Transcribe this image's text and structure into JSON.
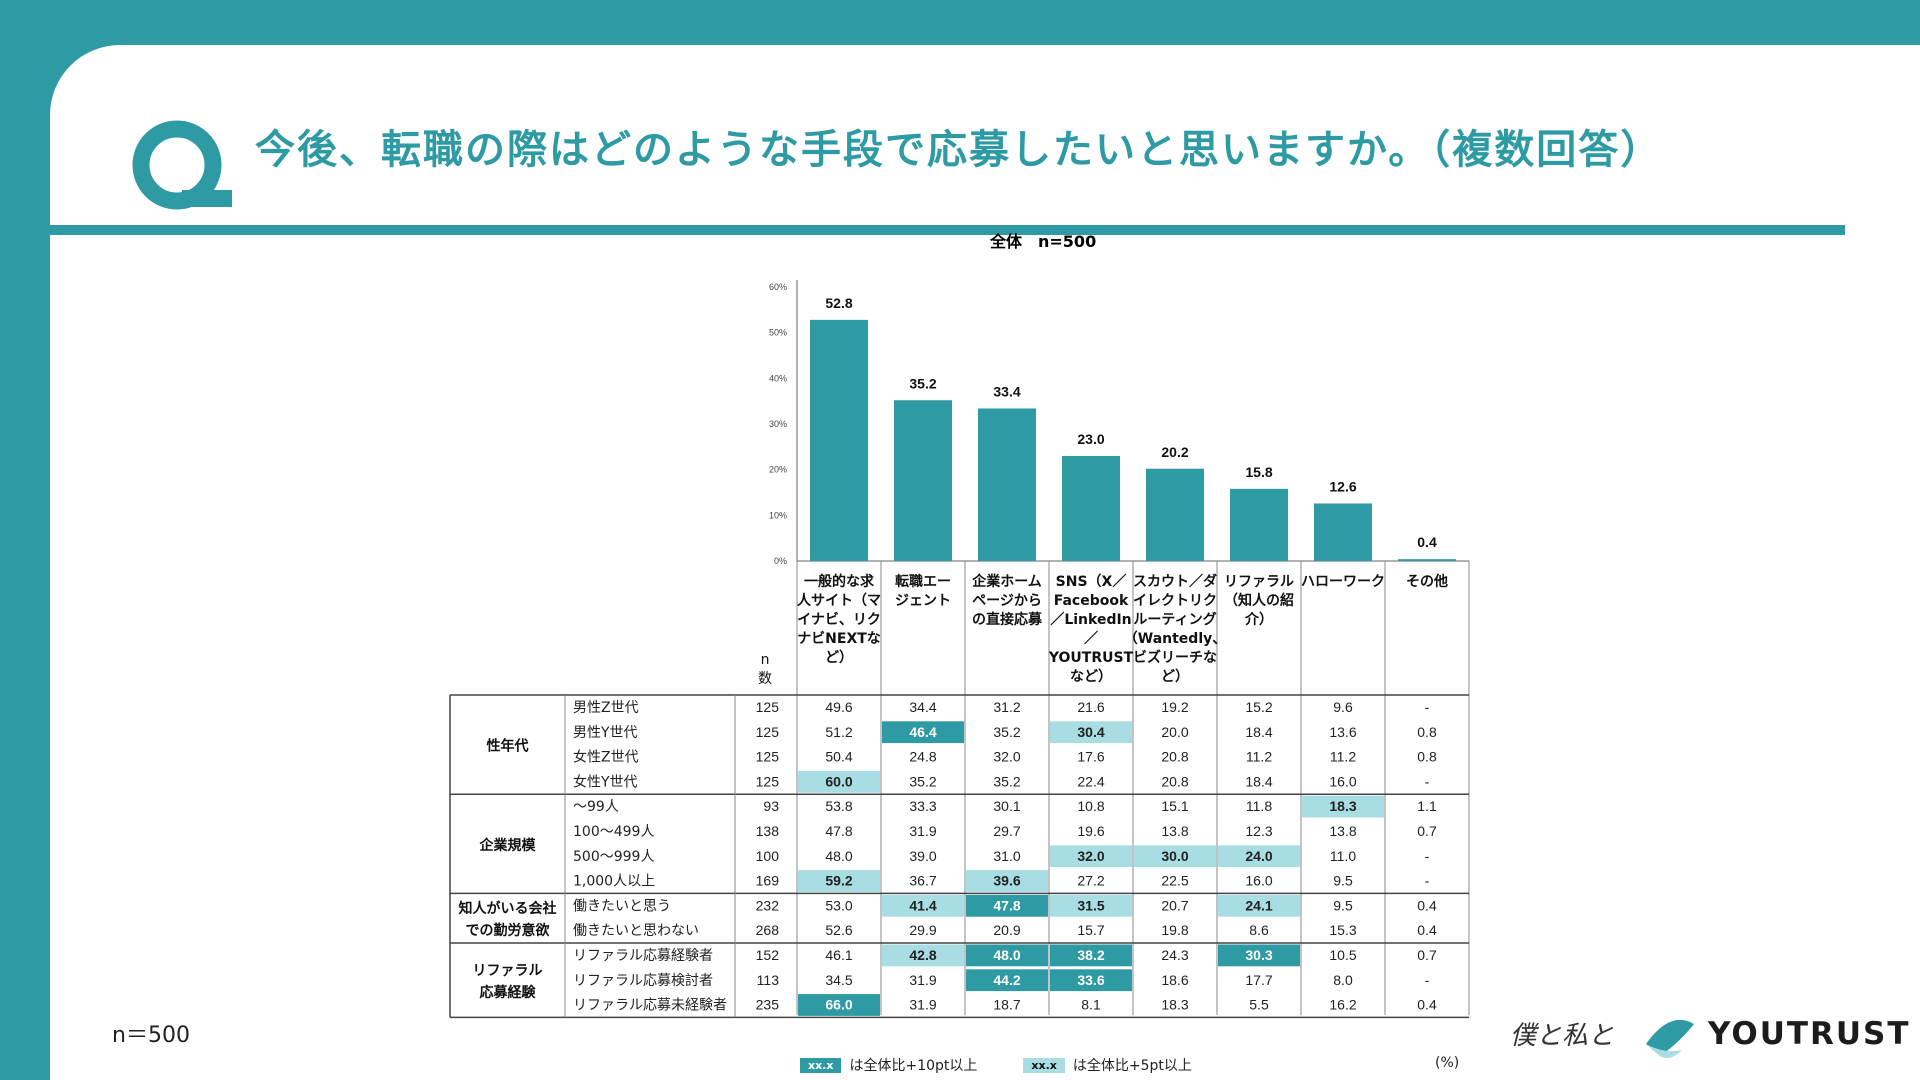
{
  "header": {
    "title": "今後、転職の際はどのような手段で応募したいと思いますか。（複数回答）",
    "q_letter": "Q"
  },
  "colors": {
    "accent": "#2e9aa3",
    "highlight_strong": "#2e9aa3",
    "highlight_light": "#a8dde3"
  },
  "chart_data": {
    "type": "bar",
    "title": "全体　n=500",
    "ylim": [
      0,
      60
    ],
    "yticks": [
      "0%",
      "10%",
      "20%",
      "30%",
      "40%",
      "50%",
      "60%"
    ],
    "categories": [
      "一般的な求人サイト（マイナビ、リクナビNEXTなど）",
      "転職エージェント",
      "企業ホームページからの直接応募",
      "SNS（X／Facebook／LinkedIn／YOUTRUSTなど）",
      "スカウト／ダイレクトリクルーティング（Wantedly、ビズリーチなど）",
      "リファラル（知人の紹介）",
      "ハローワーク",
      "その他"
    ],
    "category_lines": [
      [
        "一般的な求",
        "人サイト（マ",
        "イナビ、リク",
        "ナビNEXTな",
        "ど）"
      ],
      [
        "転職エー",
        "ジェント"
      ],
      [
        "企業ホーム",
        "ページから",
        "の直接応募"
      ],
      [
        "SNS（X／",
        "Facebook",
        "／LinkedIn",
        "／",
        "YOUTRUST",
        "など）"
      ],
      [
        "スカウト／ダ",
        "イレクトリク",
        "ルーティング",
        "（Wantedly、",
        "ビズリーチな",
        "ど）"
      ],
      [
        "リファラル",
        "（知人の紹",
        "介）"
      ],
      [
        "ハローワーク"
      ],
      [
        "その他"
      ]
    ],
    "values": [
      52.8,
      35.2,
      33.4,
      23.0,
      20.2,
      15.8,
      12.6,
      0.4
    ],
    "value_labels": [
      "52.8",
      "35.2",
      "33.4",
      "23.0",
      "20.2",
      "15.8",
      "12.6",
      "0.4"
    ],
    "n_header": [
      "n",
      "数"
    ],
    "table": {
      "groups": [
        {
          "label": [
            "性年代"
          ],
          "rows": [
            {
              "label": "男性Z世代",
              "n": "125",
              "values": [
                "49.6",
                "34.4",
                "31.2",
                "21.6",
                "19.2",
                "15.2",
                "9.6",
                "-"
              ],
              "hl": [
                0,
                0,
                0,
                0,
                0,
                0,
                0,
                0
              ]
            },
            {
              "label": "男性Y世代",
              "n": "125",
              "values": [
                "51.2",
                "46.4",
                "35.2",
                "30.4",
                "20.0",
                "18.4",
                "13.6",
                "0.8"
              ],
              "hl": [
                0,
                2,
                0,
                1,
                0,
                0,
                0,
                0
              ]
            },
            {
              "label": "女性Z世代",
              "n": "125",
              "values": [
                "50.4",
                "24.8",
                "32.0",
                "17.6",
                "20.8",
                "11.2",
                "11.2",
                "0.8"
              ],
              "hl": [
                0,
                0,
                0,
                0,
                0,
                0,
                0,
                0
              ]
            },
            {
              "label": "女性Y世代",
              "n": "125",
              "values": [
                "60.0",
                "35.2",
                "35.2",
                "22.4",
                "20.8",
                "18.4",
                "16.0",
                "-"
              ],
              "hl": [
                1,
                0,
                0,
                0,
                0,
                0,
                0,
                0
              ]
            }
          ]
        },
        {
          "label": [
            "企業規模"
          ],
          "rows": [
            {
              "label": "～99人",
              "n": "93",
              "values": [
                "53.8",
                "33.3",
                "30.1",
                "10.8",
                "15.1",
                "11.8",
                "18.3",
                "1.1"
              ],
              "hl": [
                0,
                0,
                0,
                0,
                0,
                0,
                1,
                0
              ]
            },
            {
              "label": "100～499人",
              "n": "138",
              "values": [
                "47.8",
                "31.9",
                "29.7",
                "19.6",
                "13.8",
                "12.3",
                "13.8",
                "0.7"
              ],
              "hl": [
                0,
                0,
                0,
                0,
                0,
                0,
                0,
                0
              ]
            },
            {
              "label": "500～999人",
              "n": "100",
              "values": [
                "48.0",
                "39.0",
                "31.0",
                "32.0",
                "30.0",
                "24.0",
                "11.0",
                "-"
              ],
              "hl": [
                0,
                0,
                0,
                1,
                1,
                1,
                0,
                0
              ]
            },
            {
              "label": "1,000人以上",
              "n": "169",
              "values": [
                "59.2",
                "36.7",
                "39.6",
                "27.2",
                "22.5",
                "16.0",
                "9.5",
                "-"
              ],
              "hl": [
                1,
                0,
                1,
                0,
                0,
                0,
                0,
                0
              ]
            }
          ]
        },
        {
          "label": [
            "知人がいる会社",
            "での勤労意欲"
          ],
          "rows": [
            {
              "label": "働きたいと思う",
              "n": "232",
              "values": [
                "53.0",
                "41.4",
                "47.8",
                "31.5",
                "20.7",
                "24.1",
                "9.5",
                "0.4"
              ],
              "hl": [
                0,
                1,
                2,
                1,
                0,
                1,
                0,
                0
              ]
            },
            {
              "label": "働きたいと思わない",
              "n": "268",
              "values": [
                "52.6",
                "29.9",
                "20.9",
                "15.7",
                "19.8",
                "8.6",
                "15.3",
                "0.4"
              ],
              "hl": [
                0,
                0,
                0,
                0,
                0,
                0,
                0,
                0
              ]
            }
          ]
        },
        {
          "label": [
            "リファラル",
            "応募経験"
          ],
          "rows": [
            {
              "label": "リファラル応募経験者",
              "n": "152",
              "values": [
                "46.1",
                "42.8",
                "48.0",
                "38.2",
                "24.3",
                "30.3",
                "10.5",
                "0.7"
              ],
              "hl": [
                0,
                1,
                2,
                2,
                0,
                2,
                0,
                0
              ]
            },
            {
              "label": "リファラル応募検討者",
              "n": "113",
              "values": [
                "34.5",
                "31.9",
                "44.2",
                "33.6",
                "18.6",
                "17.7",
                "8.0",
                "-"
              ],
              "hl": [
                0,
                0,
                2,
                2,
                0,
                0,
                0,
                0
              ]
            },
            {
              "label": "リファラル応募未経験者",
              "n": "235",
              "values": [
                "66.0",
                "31.9",
                "18.7",
                "8.1",
                "18.3",
                "5.5",
                "16.2",
                "0.4"
              ],
              "hl": [
                2,
                0,
                0,
                0,
                0,
                0,
                0,
                0
              ]
            }
          ]
        }
      ]
    }
  },
  "footer": {
    "n_total": "n＝500",
    "legend": [
      {
        "swatch": "xx.x",
        "text": "は全体比+10pt以上"
      },
      {
        "swatch": "xx.x",
        "text": "は全体比+5pt以上"
      }
    ],
    "unit": "(%)",
    "signature": "僕と私と",
    "brand": "YOUTRUST"
  }
}
